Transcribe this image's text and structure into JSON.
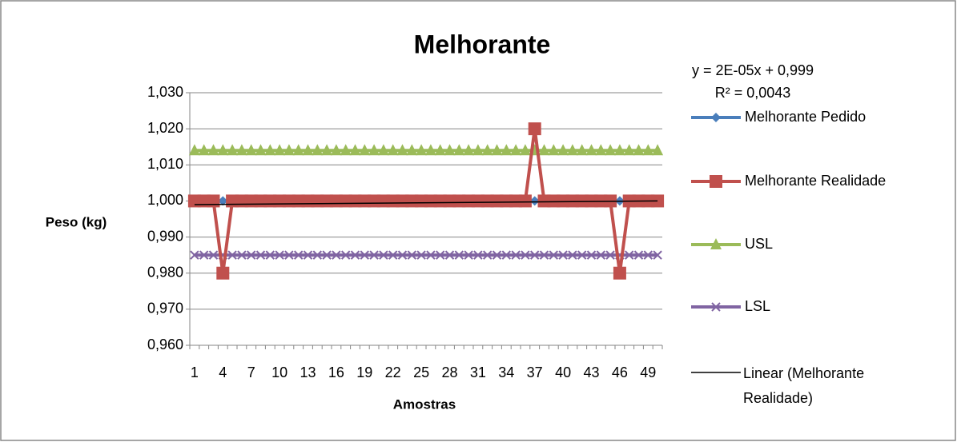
{
  "chart_data": {
    "type": "line",
    "title": "Melhorante",
    "x_label": "Amostras",
    "y_label": "Peso (kg)",
    "annotations": [
      "y = 2E-05x + 0,999",
      "R² = 0,0043"
    ],
    "categories": [
      1,
      null,
      null,
      4,
      null,
      null,
      7,
      null,
      null,
      10,
      null,
      null,
      13,
      null,
      null,
      16,
      null,
      null,
      19,
      null,
      null,
      22,
      null,
      null,
      25,
      null,
      null,
      28,
      null,
      null,
      31,
      null,
      null,
      34,
      null,
      null,
      37,
      null,
      null,
      40,
      null,
      null,
      43,
      null,
      null,
      46,
      null,
      null,
      49,
      null
    ],
    "ylim": [
      0.96,
      1.03
    ],
    "yticks": [
      {
        "value": 0.96,
        "label": "0,960"
      },
      {
        "value": 0.97,
        "label": "0,970"
      },
      {
        "value": 0.98,
        "label": "0,980"
      },
      {
        "value": 0.99,
        "label": "0,990"
      },
      {
        "value": 1.0,
        "label": "1,000"
      },
      {
        "value": 1.01,
        "label": "1,010"
      },
      {
        "value": 1.02,
        "label": "1,020"
      },
      {
        "value": 1.03,
        "label": "1,030"
      }
    ],
    "grid": true,
    "legend": "right",
    "series": [
      {
        "name": "Melhorante Pedido",
        "color": "#4a7ebb",
        "marker": "diamond",
        "values": [
          1,
          1,
          1,
          1,
          1,
          1,
          1,
          1,
          1,
          1,
          1,
          1,
          1,
          1,
          1,
          1,
          1,
          1,
          1,
          1,
          1,
          1,
          1,
          1,
          1,
          1,
          1,
          1,
          1,
          1,
          1,
          1,
          1,
          1,
          1,
          1,
          1,
          1,
          1,
          1,
          1,
          1,
          1,
          1,
          1,
          1,
          1,
          1,
          1,
          1
        ]
      },
      {
        "name": "Melhorante Realidade",
        "color": "#c0504d",
        "marker": "square",
        "values": [
          1,
          1,
          1,
          0.98,
          1,
          1,
          1,
          1,
          1,
          1,
          1,
          1,
          1,
          1,
          1,
          1,
          1,
          1,
          1,
          1,
          1,
          1,
          1,
          1,
          1,
          1,
          1,
          1,
          1,
          1,
          1,
          1,
          1,
          1,
          1,
          1,
          1.02,
          1,
          1,
          1,
          1,
          1,
          1,
          1,
          1,
          0.98,
          1,
          1,
          1,
          1
        ]
      },
      {
        "name": "USL",
        "color": "#9bbb59",
        "marker": "triangle",
        "values": [
          1.014,
          1.014,
          1.014,
          1.014,
          1.014,
          1.014,
          1.014,
          1.014,
          1.014,
          1.014,
          1.014,
          1.014,
          1.014,
          1.014,
          1.014,
          1.014,
          1.014,
          1.014,
          1.014,
          1.014,
          1.014,
          1.014,
          1.014,
          1.014,
          1.014,
          1.014,
          1.014,
          1.014,
          1.014,
          1.014,
          1.014,
          1.014,
          1.014,
          1.014,
          1.014,
          1.014,
          1.014,
          1.014,
          1.014,
          1.014,
          1.014,
          1.014,
          1.014,
          1.014,
          1.014,
          1.014,
          1.014,
          1.014,
          1.014,
          1.014
        ]
      },
      {
        "name": "LSL",
        "color": "#8064a2",
        "marker": "x",
        "values": [
          0.985,
          0.985,
          0.985,
          0.985,
          0.985,
          0.985,
          0.985,
          0.985,
          0.985,
          0.985,
          0.985,
          0.985,
          0.985,
          0.985,
          0.985,
          0.985,
          0.985,
          0.985,
          0.985,
          0.985,
          0.985,
          0.985,
          0.985,
          0.985,
          0.985,
          0.985,
          0.985,
          0.985,
          0.985,
          0.985,
          0.985,
          0.985,
          0.985,
          0.985,
          0.985,
          0.985,
          0.985,
          0.985,
          0.985,
          0.985,
          0.985,
          0.985,
          0.985,
          0.985,
          0.985,
          0.985,
          0.985,
          0.985,
          0.985,
          0.985
        ]
      }
    ],
    "trendline": {
      "name": "Linear (Melhorante Realidade)",
      "color": "#000000",
      "x": [
        1,
        50
      ],
      "values": [
        0.999,
        1.0
      ]
    }
  }
}
